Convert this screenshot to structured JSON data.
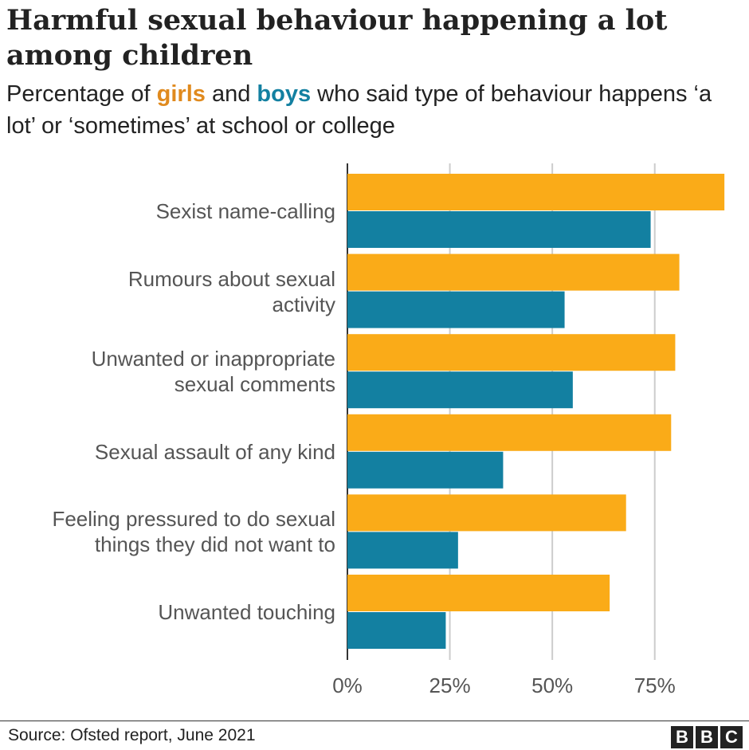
{
  "chart_data": {
    "type": "bar",
    "orientation": "horizontal",
    "title": "Harmful sexual behaviour happening a lot among children",
    "subtitle": {
      "before": "Percentage of",
      "between": "and",
      "after": "who said type of behaviour happens ‘a lot’ or ‘sometimes’ at school or college"
    },
    "categories": [
      [
        "Sexist name-calling"
      ],
      [
        "Rumours about sexual",
        "activity"
      ],
      [
        "Unwanted or inappropriate",
        "sexual comments"
      ],
      [
        "Sexual assault of any kind"
      ],
      [
        "Feeling pressured to do sexual",
        "things they did not want to"
      ],
      [
        "Unwanted touching"
      ]
    ],
    "series": [
      {
        "name": "girls",
        "color": "#faab18",
        "values": [
          92,
          81,
          80,
          79,
          68,
          64
        ]
      },
      {
        "name": "boys",
        "color": "#1380a1",
        "values": [
          74,
          53,
          55,
          38,
          27,
          24
        ]
      }
    ],
    "xlim": [
      0,
      98
    ],
    "xticks": [
      {
        "value": 0,
        "label": "0%"
      },
      {
        "value": 25,
        "label": "25%"
      },
      {
        "value": 50,
        "label": "50%"
      },
      {
        "value": 75,
        "label": "75%"
      }
    ],
    "grid": true,
    "source": "Source: Ofsted report, June 2021",
    "logo": [
      "B",
      "B",
      "C"
    ]
  }
}
